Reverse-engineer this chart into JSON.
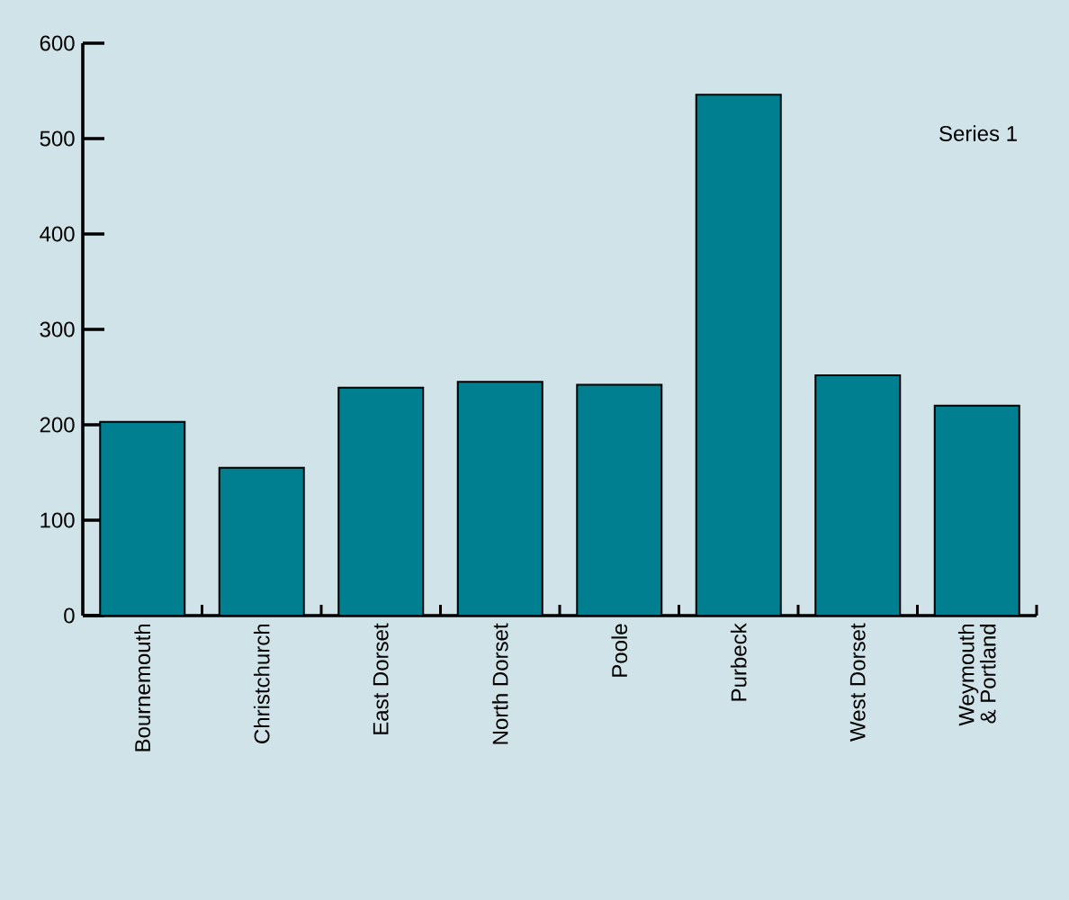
{
  "chart_data": {
    "type": "bar",
    "categories": [
      "Bournemouth",
      "Christchurch",
      "East Dorset",
      "North Dorset",
      "Poole",
      "Purbeck",
      "West Dorset",
      "Weymouth\n& Portland"
    ],
    "series": [
      {
        "name": "Series 1",
        "color": "#007f91",
        "values": [
          203,
          155,
          239,
          245,
          242,
          546,
          252,
          220
        ]
      }
    ],
    "ylim": [
      0,
      600
    ],
    "yticks": [
      0,
      100,
      200,
      300,
      400,
      500,
      600
    ],
    "grid": false,
    "legend": "right"
  }
}
